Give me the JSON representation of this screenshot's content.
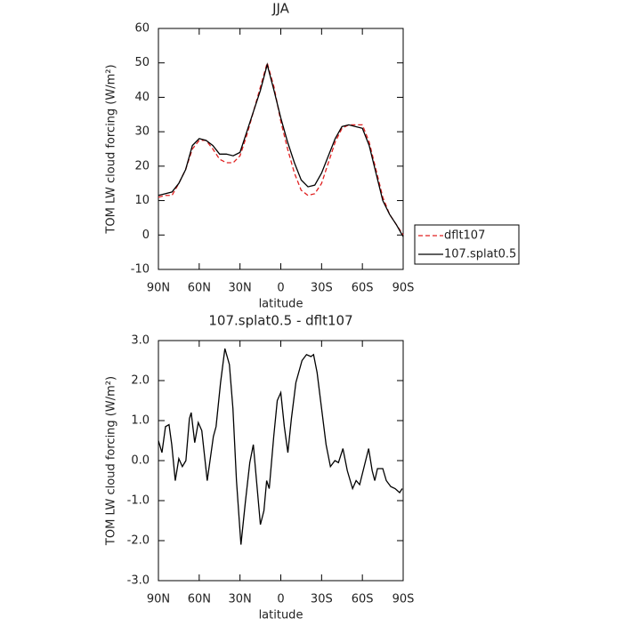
{
  "chart_data": [
    {
      "type": "line",
      "title": "JJA",
      "x_label": "latitude",
      "y_label": "TOM LW cloud forcing (W/m²)",
      "x": [
        90,
        85,
        80,
        75,
        70,
        65,
        60,
        55,
        50,
        45,
        40,
        35,
        30,
        25,
        20,
        15,
        10,
        5,
        0,
        -5,
        -10,
        -15,
        -20,
        -25,
        -30,
        -35,
        -40,
        -45,
        -50,
        -55,
        -60,
        -65,
        -70,
        -75,
        -80,
        -85,
        -90
      ],
      "series": [
        {
          "name": "dflt107",
          "color": "#e02020",
          "dash": true,
          "values": [
            11,
            11.5,
            11.5,
            15,
            19,
            25,
            27.5,
            27.5,
            25,
            22,
            21,
            21,
            23,
            29,
            36,
            43,
            50,
            43,
            33,
            25,
            18,
            13,
            11.5,
            12,
            15,
            21,
            27,
            31,
            32,
            32,
            32,
            27,
            19,
            11,
            6,
            3,
            0
          ]
        },
        {
          "name": "107.splat0.5",
          "color": "#000000",
          "dash": false,
          "values": [
            11.5,
            12,
            12.5,
            15,
            19,
            26,
            28,
            27.5,
            26,
            23.5,
            23.5,
            23,
            24,
            30,
            36,
            42,
            49.5,
            42,
            34,
            27,
            21,
            16,
            14,
            14.5,
            18,
            23,
            28,
            31.5,
            32,
            31.5,
            31,
            26,
            18,
            10,
            6,
            3,
            -0.5
          ]
        }
      ],
      "xlim": [
        90,
        -90
      ],
      "xticks": [
        {
          "value": 90,
          "label": "90N"
        },
        {
          "value": 60,
          "label": "60N"
        },
        {
          "value": 30,
          "label": "30N"
        },
        0,
        {
          "value": -30,
          "label": "30S"
        },
        {
          "value": -60,
          "label": "60S"
        },
        {
          "value": -90,
          "label": "90S"
        }
      ],
      "ylim": [
        -10,
        60
      ],
      "yticks": [
        -10,
        0,
        10,
        20,
        30,
        40,
        50,
        60
      ],
      "legend": "right"
    },
    {
      "type": "line",
      "title": "107.splat0.5 - dflt107",
      "x_label": "latitude",
      "y_label": "TOM LW cloud forcing (W/m²)",
      "x": [
        90,
        87.4,
        84.8,
        82.2,
        80.2,
        77.6,
        75,
        72.4,
        69.8,
        67.2,
        65.9,
        63.3,
        60.7,
        58.1,
        54.1,
        49.6,
        47.6,
        44.3,
        41.1,
        37.8,
        35.2,
        32.6,
        29.3,
        26.1,
        22.8,
        20.2,
        17.6,
        15,
        12.4,
        10.4,
        8.5,
        5.2,
        2.6,
        0,
        -2.6,
        -5.2,
        -7.8,
        -11.1,
        -15.6,
        -18.9,
        -22.2,
        -24.1,
        -26.7,
        -30,
        -33.3,
        -36.5,
        -39.8,
        -42.4,
        -45.7,
        -48.9,
        -52.8,
        -55.4,
        -58,
        -61.3,
        -64.6,
        -67.2,
        -69.1,
        -71.1,
        -75,
        -77.6,
        -80.9,
        -84.1,
        -87.4,
        -89.3
      ],
      "series": [
        {
          "name": "107.splat0.5 - dflt107",
          "color": "#000000",
          "dash": false,
          "values": [
            0.5,
            0.2,
            0.85,
            0.9,
            0.4,
            -0.5,
            0.05,
            -0.15,
            0,
            1.05,
            1.2,
            0.45,
            0.95,
            0.75,
            -0.5,
            0.6,
            0.85,
            1.95,
            2.8,
            2.4,
            1.3,
            -0.5,
            -2.1,
            -1.05,
            -0.05,
            0.4,
            -0.6,
            -1.6,
            -1.25,
            -0.5,
            -0.7,
            0.6,
            1.5,
            1.7,
            0.85,
            0.2,
            1.05,
            1.95,
            2.5,
            2.65,
            2.6,
            2.65,
            2.2,
            1.3,
            0.4,
            -0.15,
            0,
            -0.05,
            0.3,
            -0.25,
            -0.7,
            -0.5,
            -0.6,
            -0.15,
            0.3,
            -0.25,
            -0.5,
            -0.2,
            -0.2,
            -0.5,
            -0.65,
            -0.7,
            -0.8,
            -0.7
          ]
        }
      ],
      "xlim": [
        90,
        -90
      ],
      "xticks": [
        {
          "value": 90,
          "label": "90N"
        },
        {
          "value": 60,
          "label": "60N"
        },
        {
          "value": 30,
          "label": "30N"
        },
        0,
        {
          "value": -30,
          "label": "30S"
        },
        {
          "value": -60,
          "label": "60S"
        },
        {
          "value": -90,
          "label": "90S"
        }
      ],
      "ylim": [
        -3,
        3
      ],
      "yticks": [
        {
          "value": -3,
          "label": "-3.0"
        },
        {
          "value": -2,
          "label": "-2.0"
        },
        {
          "value": -1,
          "label": "-1.0"
        },
        {
          "value": 0,
          "label": "0.0"
        },
        {
          "value": 1,
          "label": "1.0"
        },
        {
          "value": 2,
          "label": "2.0"
        },
        {
          "value": 3,
          "label": "3.0"
        }
      ]
    }
  ]
}
